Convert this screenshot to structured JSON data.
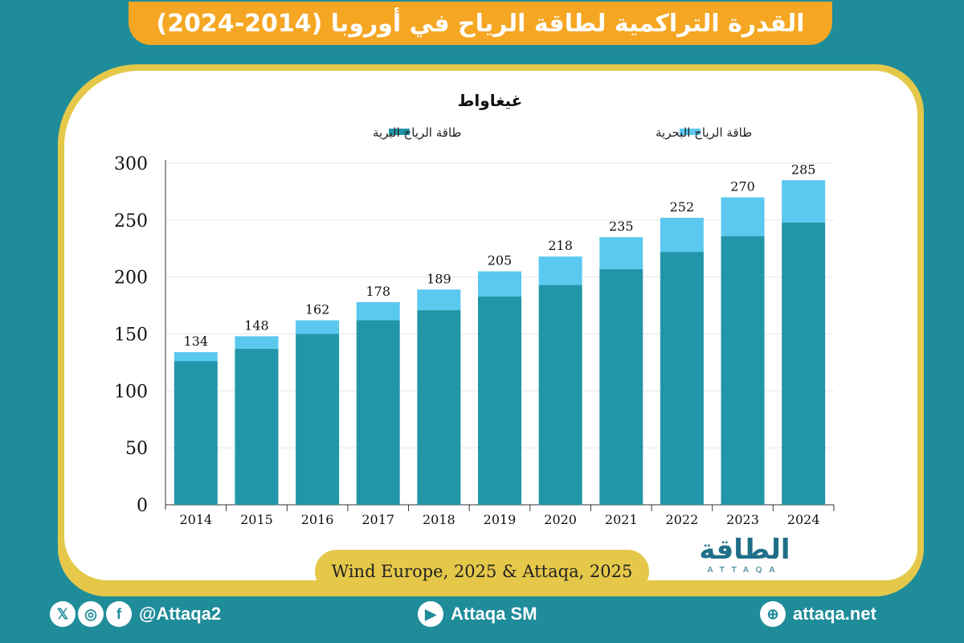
{
  "header": {
    "title": "القدرة التراكمية لطاقة الرياح في أوروبا (2014-2024)"
  },
  "source": {
    "text": "Wind Europe, 2025 & Attaqa, 2025"
  },
  "brand": {
    "arabic": "الطاقة",
    "latin": "ATTAQA"
  },
  "footer": {
    "social_handle": "@Attaqa2",
    "youtube_label": "Attaqa SM",
    "website": "attaqa.net"
  },
  "icons": {
    "x": "x-icon",
    "instagram": "instagram-icon",
    "facebook": "facebook-icon",
    "youtube": "youtube-icon",
    "globe": "globe-icon"
  },
  "colors": {
    "onshore": "#2196a8",
    "offshore": "#5bc8ef",
    "title_bg": "#f5a623",
    "frame": "#e5c84a",
    "background": "#1f8c9a"
  },
  "chart_data": {
    "type": "bar",
    "stacked": true,
    "title": "غيغاواط",
    "categories": [
      "2014",
      "2015",
      "2016",
      "2017",
      "2018",
      "2019",
      "2020",
      "2021",
      "2022",
      "2023",
      "2024"
    ],
    "series": [
      {
        "name": "طاقة الرياح البرية",
        "values": [
          126,
          137,
          150,
          162,
          171,
          183,
          193,
          207,
          222,
          236,
          248
        ]
      },
      {
        "name": "طاقة الرياح البحرية",
        "values": [
          8,
          11,
          12,
          16,
          18,
          22,
          25,
          28,
          30,
          34,
          37
        ]
      }
    ],
    "totals": [
      134,
      148,
      162,
      178,
      189,
      205,
      218,
      235,
      252,
      270,
      285
    ],
    "yticks": [
      0,
      50,
      100,
      150,
      200,
      250,
      300
    ],
    "ylim": [
      0,
      300
    ],
    "legend_position": "top"
  }
}
